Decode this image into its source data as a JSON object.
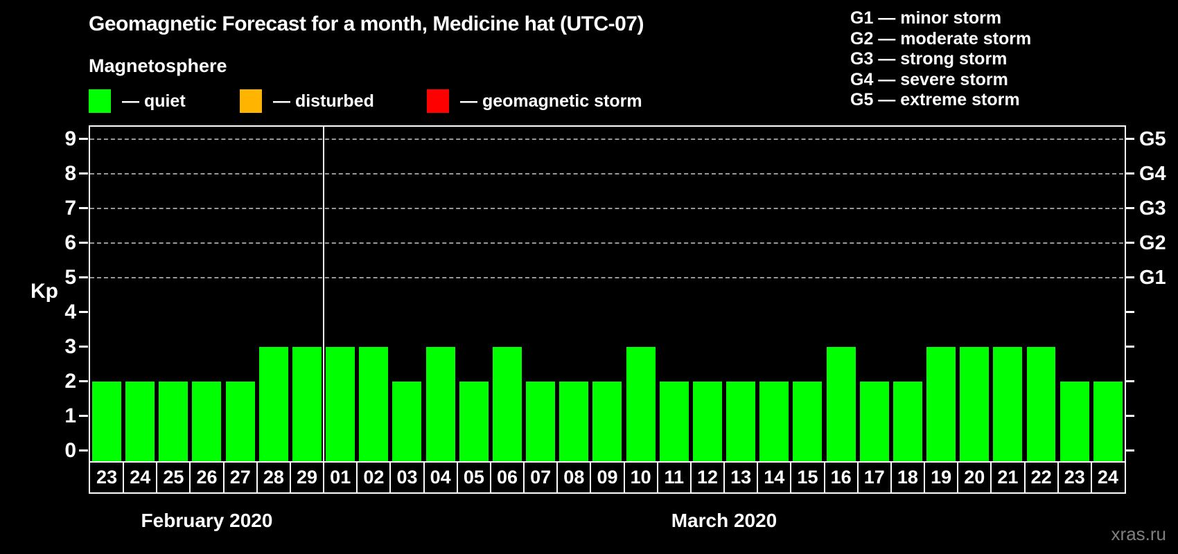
{
  "header": {
    "title": "Geomagnetic Forecast for a month, Medicine hat (UTC-07)",
    "subtitle": "Magnetosphere"
  },
  "legend": {
    "items": [
      {
        "label": "— quiet",
        "color": "#00ff00"
      },
      {
        "label": "— disturbed",
        "color": "#ffb400"
      },
      {
        "label": "— geomagnetic storm",
        "color": "#ff0000"
      }
    ]
  },
  "storm_scale": {
    "items": [
      "G1 — minor storm",
      "G2 — moderate storm",
      "G3 — strong storm",
      "G4 — severe storm",
      "G5 — extreme storm"
    ]
  },
  "chart_data": {
    "type": "bar",
    "title": "Geomagnetic Forecast for a month, Medicine hat (UTC-07)",
    "ylabel": "Kp",
    "ylim": [
      -0.35,
      9.35
    ],
    "yticks": [
      0,
      1,
      2,
      3,
      4,
      5,
      6,
      7,
      8,
      9
    ],
    "grid": "dashed horizontal at storm levels",
    "gridline_levels": [
      5,
      6,
      7,
      8,
      9
    ],
    "right_axis_labels": [
      {
        "text": "G1",
        "kp": 5
      },
      {
        "text": "G2",
        "kp": 6
      },
      {
        "text": "G3",
        "kp": 7
      },
      {
        "text": "G4",
        "kp": 8
      },
      {
        "text": "G5",
        "kp": 9
      }
    ],
    "categories": [
      "23",
      "24",
      "25",
      "26",
      "27",
      "28",
      "29",
      "01",
      "02",
      "03",
      "04",
      "05",
      "06",
      "07",
      "08",
      "09",
      "10",
      "11",
      "12",
      "13",
      "14",
      "15",
      "16",
      "17",
      "18",
      "19",
      "20",
      "21",
      "22",
      "23",
      "24"
    ],
    "values": [
      2,
      2,
      2,
      2,
      2,
      3,
      3,
      3,
      3,
      2,
      3,
      2,
      3,
      2,
      2,
      2,
      3,
      2,
      2,
      2,
      2,
      2,
      3,
      2,
      2,
      3,
      3,
      3,
      3,
      2,
      2
    ],
    "color_rule": {
      "quiet_max_kp": 3,
      "disturbed_kp": 4,
      "storm_min_kp": 5
    },
    "months": [
      {
        "label": "February 2020",
        "num_days": 7
      },
      {
        "label": "March 2020",
        "num_days": 24
      }
    ]
  },
  "watermark": "xras.ru"
}
